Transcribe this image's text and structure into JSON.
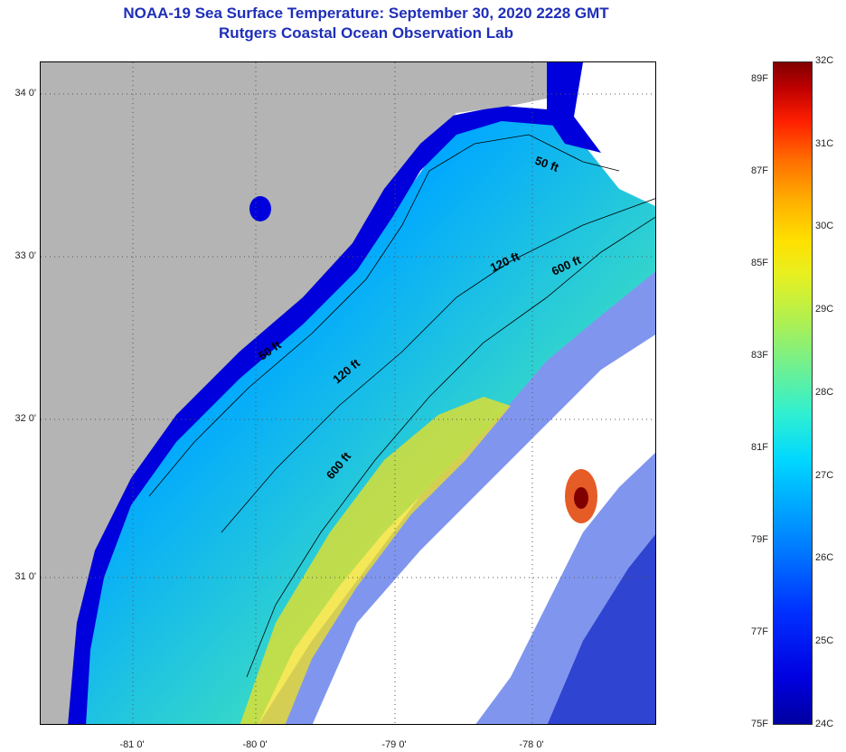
{
  "header": {
    "title": "NOAA-19 Sea Surface Temperature:  September 30, 2020 2228 GMT",
    "subtitle": "Rutgers Coastal Ocean Observation Lab"
  },
  "map": {
    "lat_labels": [
      "34 0'",
      "33 0'",
      "32 0'",
      "31 0'"
    ],
    "lon_labels": [
      "-81 0'",
      "-80 0'",
      "-79 0'",
      "-78 0'"
    ],
    "contour_labels": {
      "c50_a": "50 ft",
      "c50_b": "50 ft",
      "c120_a": "120 ft",
      "c120_b": "120 ft",
      "c600_a": "600 ft",
      "c600_b": "600 ft"
    },
    "colors": {
      "land": "#b4b4b4",
      "cloud": "#ffffff",
      "nearshore": "#0000dc",
      "shelf": "#00b4ff",
      "midshelf": "#40e0c0",
      "gulfstream": "#f0e020"
    }
  },
  "colorbar": {
    "fahrenheit": [
      "89F",
      "87F",
      "85F",
      "83F",
      "81F",
      "79F",
      "77F",
      "75F"
    ],
    "celsius": [
      "32C",
      "31C",
      "30C",
      "29C",
      "28C",
      "27C",
      "26C",
      "25C",
      "24C"
    ]
  }
}
